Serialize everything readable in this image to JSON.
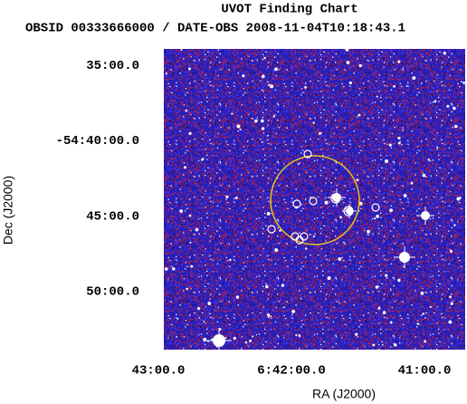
{
  "chart_data": {
    "type": "image",
    "title": "UVOT Finding Chart",
    "subtitle": "OBSID 00333666000 / DATE-OBS 2008-11-04T10:18:43.1",
    "x_label": "RA (J2000)",
    "y_label": "Dec (J2000)",
    "xlim": [
      100.7398,
      100.1735
    ],
    "ylim": [
      -54.8976,
      -54.5652
    ],
    "xticks": [
      {
        "value": 100.75,
        "label": "43:00.0"
      },
      {
        "value": 100.5,
        "label": "6:42:00.0"
      },
      {
        "value": 100.25,
        "label": "41:00.0"
      }
    ],
    "yticks": [
      {
        "value": -54.5833,
        "label": "35:00.0"
      },
      {
        "value": -54.6667,
        "label": "-54:40:00.0"
      },
      {
        "value": -54.75,
        "label": "45:00.0"
      },
      {
        "value": -54.8333,
        "label": "50:00.0"
      }
    ]
  }
}
